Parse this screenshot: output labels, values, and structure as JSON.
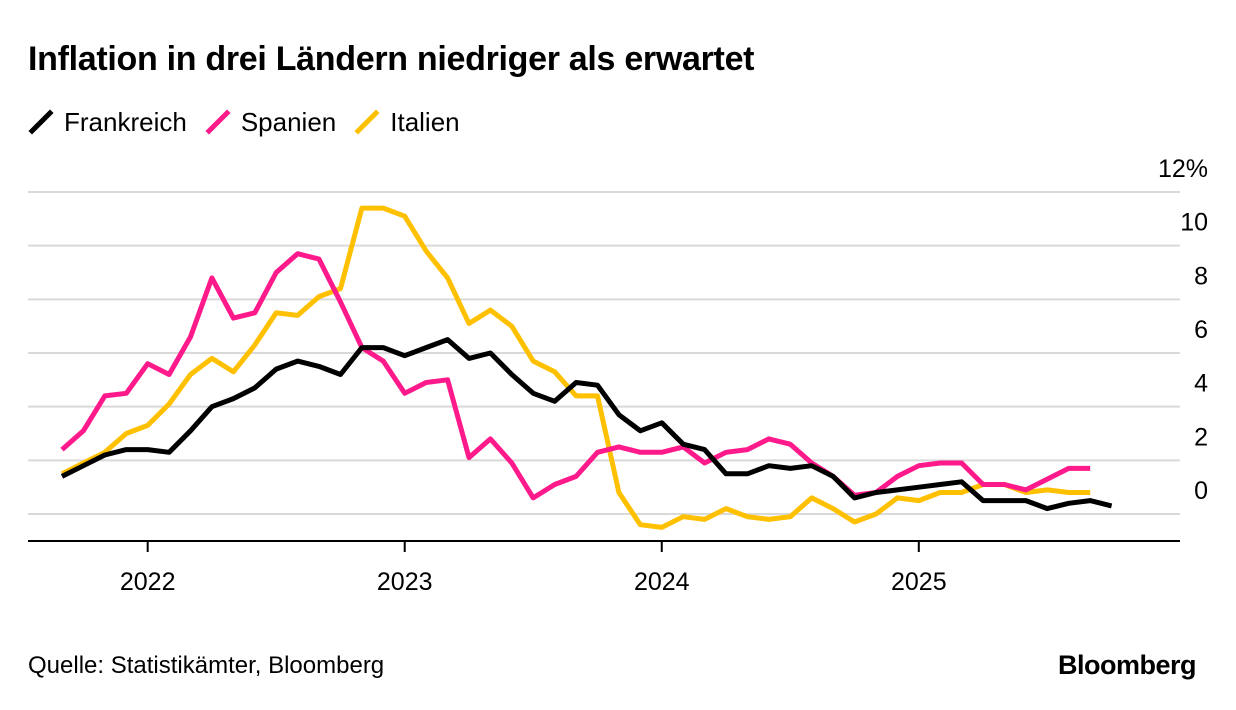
{
  "title": "Inflation in drei Ländern niedriger als erwartet",
  "source": "Quelle: Statistikämter, Bloomberg",
  "brand": "Bloomberg",
  "chart_data": {
    "type": "line",
    "title": "Inflation in drei Ländern niedriger als erwartet",
    "xlabel": "",
    "ylabel": "",
    "x_start": "2021-09",
    "x_ticks": [
      {
        "label": "2022",
        "month_index": 4
      },
      {
        "label": "2023",
        "month_index": 16
      },
      {
        "label": "2024",
        "month_index": 28
      },
      {
        "label": "2025",
        "month_index": 40
      }
    ],
    "ylim": [
      -1,
      12.5
    ],
    "y_ticks": [
      {
        "value": 12,
        "label": "12%"
      },
      {
        "value": 10,
        "label": "10"
      },
      {
        "value": 8,
        "label": "8"
      },
      {
        "value": 6,
        "label": "6"
      },
      {
        "value": 4,
        "label": "4"
      },
      {
        "value": 2,
        "label": "2"
      },
      {
        "value": 0,
        "label": "0"
      }
    ],
    "grid": true,
    "legend_position": "top-left",
    "series": [
      {
        "name": "Frankreich",
        "color": "#000000",
        "values": [
          1.4,
          1.8,
          2.2,
          2.4,
          2.4,
          2.3,
          3.1,
          4.0,
          4.3,
          4.7,
          5.4,
          5.7,
          5.5,
          5.2,
          6.2,
          6.2,
          5.9,
          6.2,
          6.5,
          5.8,
          6.0,
          5.2,
          4.5,
          4.2,
          4.9,
          4.8,
          3.7,
          3.1,
          3.4,
          2.6,
          2.4,
          1.5,
          1.5,
          1.8,
          1.7,
          1.8,
          1.4,
          0.6,
          0.8,
          0.9,
          1.0,
          1.1,
          1.2,
          0.5,
          0.5,
          0.5,
          0.2,
          0.4,
          0.5,
          0.3
        ]
      },
      {
        "name": "Spanien",
        "color": "#ff1a8c",
        "values": [
          2.4,
          3.1,
          4.4,
          4.5,
          5.6,
          5.2,
          6.6,
          8.8,
          7.3,
          7.5,
          9.0,
          9.7,
          9.5,
          7.9,
          6.2,
          5.7,
          4.5,
          4.9,
          5.0,
          2.1,
          2.8,
          1.9,
          0.6,
          1.1,
          1.4,
          2.3,
          2.5,
          2.3,
          2.3,
          2.5,
          1.9,
          2.3,
          2.4,
          2.8,
          2.6,
          1.9,
          1.4,
          0.7,
          0.8,
          1.4,
          1.8,
          1.9,
          1.9,
          1.1,
          1.1,
          0.9,
          1.3,
          1.7,
          1.7
        ]
      },
      {
        "name": "Italien",
        "color": "#ffc000",
        "values": [
          1.5,
          1.9,
          2.3,
          3.0,
          3.3,
          4.1,
          5.2,
          5.8,
          5.3,
          6.3,
          7.5,
          7.4,
          8.1,
          8.4,
          11.4,
          11.4,
          11.1,
          9.8,
          8.8,
          7.1,
          7.6,
          7.0,
          5.7,
          5.3,
          4.4,
          4.4,
          0.8,
          -0.4,
          -0.5,
          -0.1,
          -0.2,
          0.2,
          -0.1,
          -0.2,
          -0.1,
          0.6,
          0.2,
          -0.3,
          0.0,
          0.6,
          0.5,
          0.8,
          0.8,
          1.1,
          1.1,
          0.8,
          0.9,
          0.8,
          0.8
        ]
      }
    ]
  }
}
